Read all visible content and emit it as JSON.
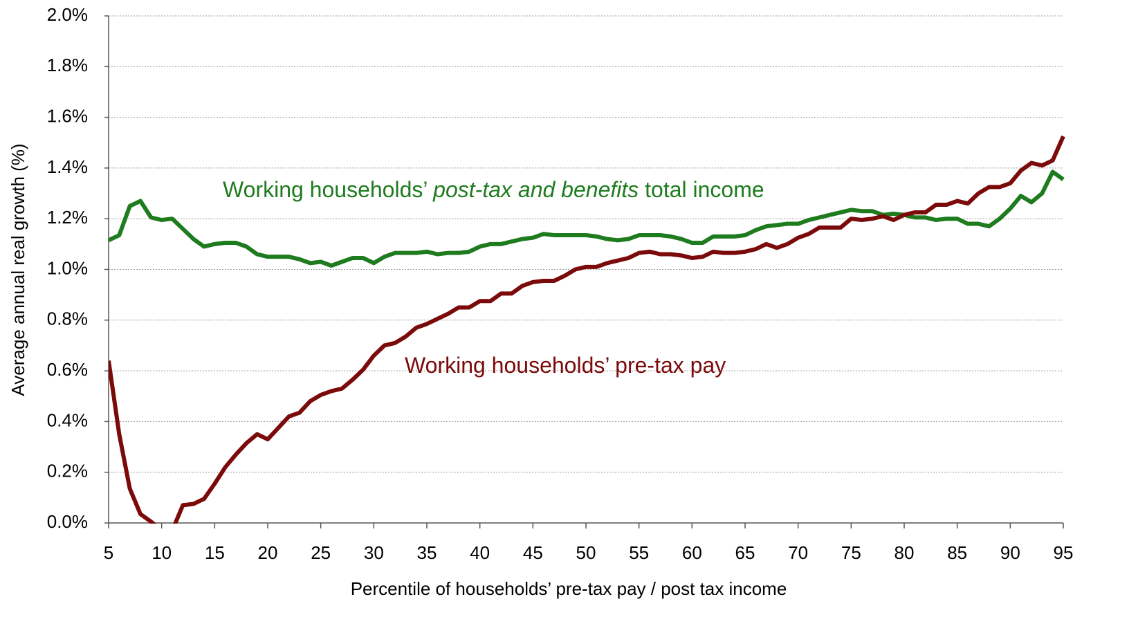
{
  "chart_data": {
    "type": "line",
    "x_label": "Percentile of households’ pre-tax pay / post tax income",
    "y_label": "Average annual real growth (%)",
    "xlim": [
      5,
      95
    ],
    "xticks": [
      5,
      10,
      15,
      20,
      25,
      30,
      35,
      40,
      45,
      50,
      55,
      60,
      65,
      70,
      75,
      80,
      85,
      90,
      95
    ],
    "ylim": [
      0,
      2
    ],
    "yticks": [
      {
        "value": 0,
        "label": "0.0%"
      },
      {
        "value": 0.2,
        "label": "0.2%"
      },
      {
        "value": 0.4,
        "label": "0.4%"
      },
      {
        "value": 0.6,
        "label": "0.6%"
      },
      {
        "value": 0.8,
        "label": "0.8%"
      },
      {
        "value": 1.0,
        "label": "1.0%"
      },
      {
        "value": 1.2,
        "label": "1.2%"
      },
      {
        "value": 1.4,
        "label": "1.4%"
      },
      {
        "value": 1.6,
        "label": "1.6%"
      },
      {
        "value": 1.8,
        "label": "1.8%"
      },
      {
        "value": 2.0,
        "label": "2.0%"
      }
    ],
    "grid": true,
    "x": [
      5,
      6,
      7,
      8,
      9,
      10,
      11,
      12,
      13,
      14,
      15,
      16,
      17,
      18,
      19,
      20,
      21,
      22,
      23,
      24,
      25,
      26,
      27,
      28,
      29,
      30,
      31,
      32,
      33,
      34,
      35,
      36,
      37,
      38,
      39,
      40,
      41,
      42,
      43,
      44,
      45,
      46,
      47,
      48,
      49,
      50,
      51,
      52,
      53,
      54,
      55,
      56,
      57,
      58,
      59,
      60,
      61,
      62,
      63,
      64,
      65,
      66,
      67,
      68,
      69,
      70,
      71,
      72,
      73,
      74,
      75,
      76,
      77,
      78,
      79,
      80,
      81,
      82,
      83,
      84,
      85,
      86,
      87,
      88,
      89,
      90,
      91,
      92,
      93,
      94,
      95
    ],
    "series": [
      {
        "color": "#1e7b1e",
        "values": [
          1.115,
          1.135,
          1.25,
          1.27,
          1.205,
          1.195,
          1.2,
          1.16,
          1.12,
          1.09,
          1.1,
          1.105,
          1.105,
          1.09,
          1.06,
          1.05,
          1.05,
          1.05,
          1.04,
          1.025,
          1.03,
          1.015,
          1.03,
          1.045,
          1.045,
          1.025,
          1.05,
          1.065,
          1.065,
          1.065,
          1.07,
          1.06,
          1.065,
          1.065,
          1.07,
          1.09,
          1.1,
          1.1,
          1.11,
          1.12,
          1.125,
          1.14,
          1.135,
          1.135,
          1.135,
          1.135,
          1.13,
          1.12,
          1.115,
          1.12,
          1.135,
          1.135,
          1.135,
          1.13,
          1.12,
          1.105,
          1.105,
          1.13,
          1.13,
          1.13,
          1.135,
          1.155,
          1.17,
          1.175,
          1.18,
          1.18,
          1.195,
          1.205,
          1.215,
          1.225,
          1.235,
          1.23,
          1.23,
          1.215,
          1.22,
          1.215,
          1.205,
          1.205,
          1.195,
          1.2,
          1.2,
          1.18,
          1.18,
          1.17,
          1.2,
          1.24,
          1.29,
          1.265,
          1.3,
          1.385,
          1.355
        ]
      },
      {
        "color": "#7b0a0a",
        "values": [
          0.64,
          0.35,
          0.135,
          0.035,
          0.005,
          -0.03,
          -0.03,
          0.07,
          0.075,
          0.095,
          0.155,
          0.22,
          0.27,
          0.315,
          0.35,
          0.33,
          0.375,
          0.42,
          0.435,
          0.48,
          0.505,
          0.52,
          0.53,
          0.565,
          0.605,
          0.66,
          0.7,
          0.71,
          0.735,
          0.77,
          0.785,
          0.805,
          0.825,
          0.85,
          0.85,
          0.875,
          0.875,
          0.905,
          0.905,
          0.935,
          0.95,
          0.955,
          0.955,
          0.975,
          1.0,
          1.01,
          1.01,
          1.025,
          1.035,
          1.045,
          1.065,
          1.07,
          1.06,
          1.06,
          1.055,
          1.045,
          1.05,
          1.07,
          1.065,
          1.065,
          1.07,
          1.08,
          1.1,
          1.085,
          1.1,
          1.125,
          1.14,
          1.165,
          1.165,
          1.165,
          1.2,
          1.195,
          1.2,
          1.21,
          1.195,
          1.215,
          1.225,
          1.225,
          1.255,
          1.255,
          1.27,
          1.26,
          1.3,
          1.325,
          1.325,
          1.34,
          1.39,
          1.42,
          1.41,
          1.43,
          1.525
        ]
      }
    ],
    "annotations": [
      {
        "color": "#1e7b1e",
        "text": [
          "Working households’ ",
          "post-tax and benefits",
          " total income"
        ]
      },
      {
        "color": "#7b0a0a",
        "text": [
          "Working households’ pre-tax pay"
        ]
      }
    ]
  }
}
